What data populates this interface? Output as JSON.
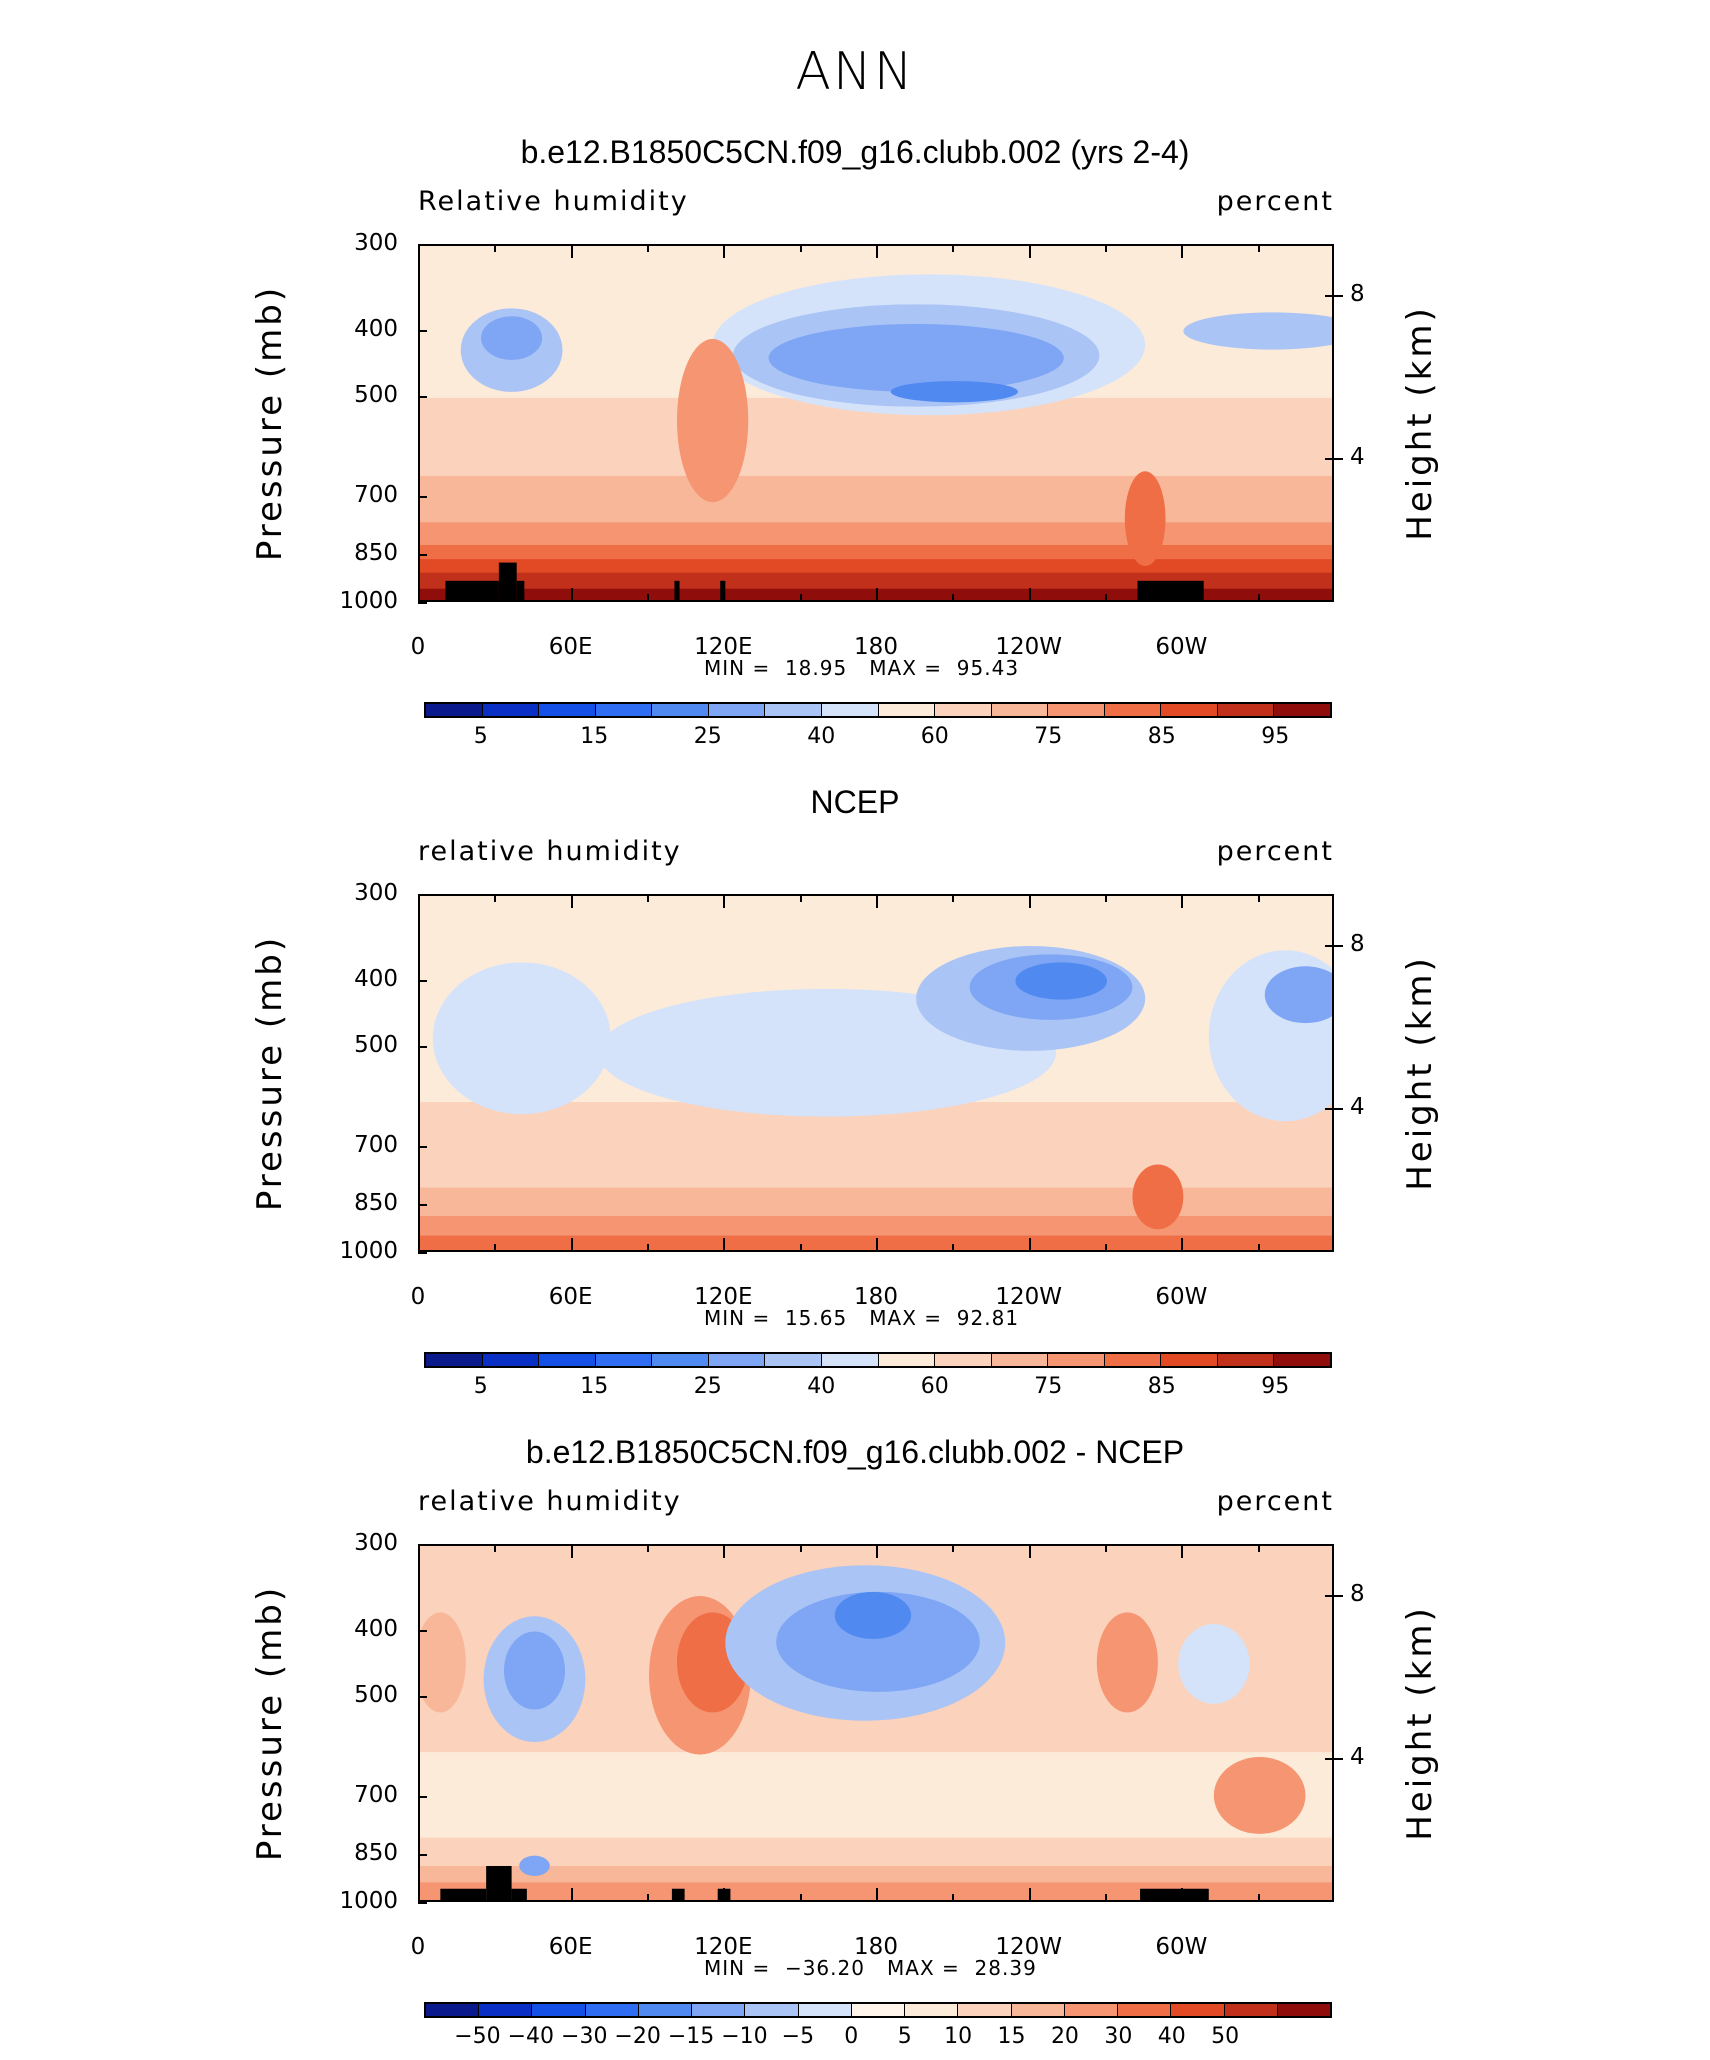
{
  "figure": {
    "title": "ANN"
  },
  "colors": {
    "rh_palette": [
      "#0a1a8c",
      "#0a2fc4",
      "#1450e6",
      "#2f6ef2",
      "#5089f0",
      "#7ea6f4",
      "#aac4f6",
      "#d5e3fa",
      "#fdebd9",
      "#fbd2bb",
      "#f8b798",
      "#f59572",
      "#ef6e45",
      "#e14a24",
      "#c1301a",
      "#8f0d0b"
    ],
    "diff_palette": [
      "#0a1a8c",
      "#0a2fc4",
      "#1450e6",
      "#2f6ef2",
      "#5089f0",
      "#7ea6f4",
      "#aac4f6",
      "#d5e3fa",
      "#fff5ea",
      "#fdebd9",
      "#fbd2bb",
      "#f8b798",
      "#f59572",
      "#ef6e45",
      "#e14a24",
      "#c1301a",
      "#8f0d0b"
    ],
    "land_mask": "#000000"
  },
  "chart_data": [
    {
      "type": "heatmap",
      "title": "b.e12.B1850C5CN.f09_g16.clubb.002 (yrs 2-4)",
      "variable": "Relative humidity",
      "units": "percent",
      "ylabel": "Pressure (mb)",
      "ylabel_right": "Height (km)",
      "x_ticks": [
        "0",
        "60E",
        "120E",
        "180",
        "120W",
        "60W"
      ],
      "x_tick_lons": [
        0,
        60,
        120,
        180,
        240,
        300
      ],
      "y_ticks": [
        300,
        400,
        500,
        700,
        850,
        1000
      ],
      "y_ticks_right": [
        "8",
        "4"
      ],
      "y_ticks_right_pressure": [
        356,
        616
      ],
      "min_label": "MIN =",
      "min": "18.95",
      "max_label": "MAX =",
      "max": "95.43",
      "levels": [
        "5",
        "15",
        "25",
        "40",
        "60",
        "75",
        "85",
        "95"
      ],
      "level_positions": [
        1,
        3,
        5,
        7,
        9,
        11,
        13,
        15
      ],
      "palette": "rh_palette",
      "features": [
        {
          "kind": "blob",
          "lon": 36,
          "p": 430,
          "rx": 20,
          "ry": 120,
          "color_index": 6
        },
        {
          "kind": "blob",
          "lon": 36,
          "p": 410,
          "rx": 12,
          "ry": 60,
          "color_index": 5
        },
        {
          "kind": "blob",
          "lon": 200,
          "p": 430,
          "rx": 85,
          "ry": 200,
          "color_index": 7
        },
        {
          "kind": "blob",
          "lon": 195,
          "p": 440,
          "rx": 72,
          "ry": 150,
          "color_index": 6
        },
        {
          "kind": "blob",
          "lon": 195,
          "p": 440,
          "rx": 58,
          "ry": 100,
          "color_index": 5
        },
        {
          "kind": "blob",
          "lon": 210,
          "p": 490,
          "rx": 25,
          "ry": 35,
          "color_index": 4
        },
        {
          "kind": "blob",
          "lon": 335,
          "p": 400,
          "rx": 35,
          "ry": 50,
          "color_index": 6
        },
        {
          "kind": "blob",
          "lon": 115,
          "p": 560,
          "rx": 14,
          "ry": 300,
          "color_index": 11
        },
        {
          "kind": "blob",
          "lon": 285,
          "p": 760,
          "rx": 8,
          "ry": 240,
          "color_index": 12
        }
      ],
      "land": [
        [
          10,
          31,
          925,
          1000
        ],
        [
          31,
          38,
          870,
          1000
        ],
        [
          38,
          41,
          925,
          1000
        ],
        [
          100,
          102,
          925,
          1000
        ],
        [
          118,
          120,
          925,
          1000
        ],
        [
          282,
          308,
          925,
          1000
        ]
      ],
      "base_profile": [
        [
          300,
          8
        ],
        [
          500,
          9
        ],
        [
          650,
          10
        ],
        [
          760,
          11
        ],
        [
          820,
          12
        ],
        [
          860,
          13
        ],
        [
          900,
          14
        ],
        [
          950,
          15
        ],
        [
          1000,
          14
        ]
      ]
    },
    {
      "type": "heatmap",
      "title": "NCEP",
      "variable": "relative humidity",
      "units": "percent",
      "ylabel": "Pressure (mb)",
      "ylabel_right": "Height (km)",
      "x_ticks": [
        "0",
        "60E",
        "120E",
        "180",
        "120W",
        "60W"
      ],
      "x_tick_lons": [
        0,
        60,
        120,
        180,
        240,
        300
      ],
      "y_ticks": [
        300,
        400,
        500,
        700,
        850,
        1000
      ],
      "y_ticks_right": [
        "8",
        "4"
      ],
      "y_ticks_right_pressure": [
        356,
        616
      ],
      "min_label": "MIN =",
      "min": "15.65",
      "max_label": "MAX =",
      "max": "92.81",
      "levels": [
        "5",
        "15",
        "25",
        "40",
        "60",
        "75",
        "85",
        "95"
      ],
      "level_positions": [
        1,
        3,
        5,
        7,
        9,
        11,
        13,
        15
      ],
      "palette": "rh_palette",
      "features": [
        {
          "kind": "blob",
          "lon": 160,
          "p": 520,
          "rx": 90,
          "ry": 220,
          "color_index": 7
        },
        {
          "kind": "blob",
          "lon": 40,
          "p": 500,
          "rx": 35,
          "ry": 250,
          "color_index": 7
        },
        {
          "kind": "blob",
          "lon": 340,
          "p": 500,
          "rx": 30,
          "ry": 280,
          "color_index": 7
        },
        {
          "kind": "blob",
          "lon": 240,
          "p": 430,
          "rx": 45,
          "ry": 150,
          "color_index": 6
        },
        {
          "kind": "blob",
          "lon": 248,
          "p": 410,
          "rx": 32,
          "ry": 90,
          "color_index": 5
        },
        {
          "kind": "blob",
          "lon": 252,
          "p": 400,
          "rx": 18,
          "ry": 50,
          "color_index": 4
        },
        {
          "kind": "blob",
          "lon": 348,
          "p": 420,
          "rx": 16,
          "ry": 80,
          "color_index": 5
        },
        {
          "kind": "blob",
          "lon": 290,
          "p": 830,
          "rx": 10,
          "ry": 180,
          "color_index": 12
        }
      ],
      "land": [],
      "base_profile": [
        [
          300,
          8
        ],
        [
          600,
          9
        ],
        [
          800,
          10
        ],
        [
          880,
          11
        ],
        [
          940,
          12
        ],
        [
          1000,
          13
        ]
      ]
    },
    {
      "type": "heatmap",
      "title": "b.e12.B1850C5CN.f09_g16.clubb.002 - NCEP",
      "variable": "relative humidity",
      "units": "percent",
      "ylabel": "Pressure (mb)",
      "ylabel_right": "Height (km)",
      "x_ticks": [
        "0",
        "60E",
        "120E",
        "180",
        "120W",
        "60W"
      ],
      "x_tick_lons": [
        0,
        60,
        120,
        180,
        240,
        300
      ],
      "y_ticks": [
        300,
        400,
        500,
        700,
        850,
        1000
      ],
      "y_ticks_right": [
        "8",
        "4"
      ],
      "y_ticks_right_pressure": [
        356,
        616
      ],
      "min_label": "MIN =",
      "min": "−36.20",
      "max_label": "MAX =",
      "max": "28.39",
      "levels": [
        "−50",
        "−40",
        "−30",
        "−20",
        "−15",
        "−10",
        "−5",
        "0",
        "5",
        "10",
        "15",
        "20",
        "30",
        "40",
        "50"
      ],
      "level_positions": [
        1,
        2,
        3,
        4,
        5,
        6,
        7,
        8,
        9,
        10,
        11,
        12,
        13,
        14,
        15
      ],
      "palette": "diff_palette",
      "features": [
        {
          "kind": "blob",
          "lon": 8,
          "p": 450,
          "rx": 10,
          "ry": 150,
          "color_index": 11
        },
        {
          "kind": "blob",
          "lon": 45,
          "p": 480,
          "rx": 20,
          "ry": 200,
          "color_index": 6
        },
        {
          "kind": "blob",
          "lon": 45,
          "p": 460,
          "rx": 12,
          "ry": 120,
          "color_index": 5
        },
        {
          "kind": "blob",
          "lon": 110,
          "p": 480,
          "rx": 20,
          "ry": 250,
          "color_index": 12
        },
        {
          "kind": "blob",
          "lon": 115,
          "p": 450,
          "rx": 14,
          "ry": 150,
          "color_index": 13
        },
        {
          "kind": "blob",
          "lon": 175,
          "p": 430,
          "rx": 55,
          "ry": 220,
          "color_index": 6
        },
        {
          "kind": "blob",
          "lon": 180,
          "p": 420,
          "rx": 40,
          "ry": 140,
          "color_index": 5
        },
        {
          "kind": "blob",
          "lon": 178,
          "p": 380,
          "rx": 15,
          "ry": 60,
          "color_index": 4
        },
        {
          "kind": "blob",
          "lon": 278,
          "p": 450,
          "rx": 12,
          "ry": 150,
          "color_index": 12
        },
        {
          "kind": "blob",
          "lon": 312,
          "p": 450,
          "rx": 14,
          "ry": 120,
          "color_index": 7
        },
        {
          "kind": "blob",
          "lon": 330,
          "p": 700,
          "rx": 18,
          "ry": 180,
          "color_index": 12
        },
        {
          "kind": "blob",
          "lon": 45,
          "p": 880,
          "rx": 6,
          "ry": 60,
          "color_index": 5
        }
      ],
      "land": [
        [
          8,
          26,
          950,
          1000
        ],
        [
          26,
          36,
          880,
          1000
        ],
        [
          36,
          42,
          950,
          1000
        ],
        [
          99,
          104,
          950,
          1000
        ],
        [
          117,
          122,
          950,
          1000
        ],
        [
          283,
          310,
          950,
          1000
        ]
      ],
      "base_profile": [
        [
          300,
          10
        ],
        [
          600,
          9
        ],
        [
          800,
          10
        ],
        [
          880,
          11
        ],
        [
          930,
          12
        ],
        [
          1000,
          10
        ]
      ]
    }
  ]
}
